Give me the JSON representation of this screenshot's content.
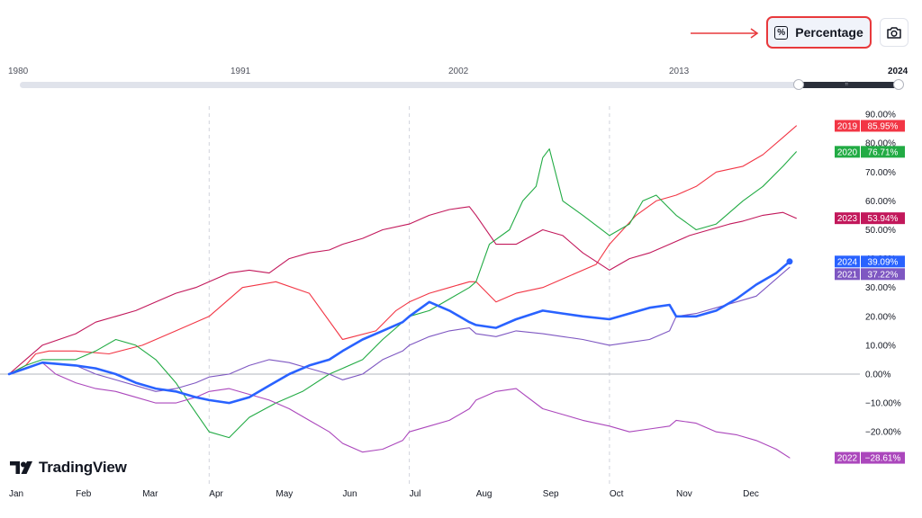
{
  "toolbar": {
    "percentage_label": "Percentage",
    "percentage_icon": "%",
    "camera_icon": "camera-icon",
    "highlight_color": "#e8393c"
  },
  "range": {
    "years": [
      "1980",
      "1991",
      "2002",
      "2013",
      "2024"
    ]
  },
  "logo": {
    "text": "TradingView"
  },
  "chart_data": {
    "type": "line",
    "title": "",
    "xlabel": "",
    "ylabel": "",
    "x_ticks": [
      "Jan",
      "Feb",
      "Mar",
      "Apr",
      "May",
      "Jun",
      "Jul",
      "Aug",
      "Sep",
      "Oct",
      "Nov",
      "Dec"
    ],
    "y_ticks": [
      "90.00%",
      "80.00%",
      "70.00%",
      "60.00%",
      "50.00%",
      "40.00%",
      "30.00%",
      "20.00%",
      "10.00%",
      "0.00%",
      "−10.00%",
      "−20.00%"
    ],
    "ylim": [
      -35,
      95
    ],
    "grid": "vertical dashed at month starts",
    "series": [
      {
        "name": "2019",
        "color": "#f23645",
        "label": "85.95%",
        "x": [
          0.0,
          0.25,
          0.4,
          0.6,
          1.0,
          1.5,
          2.0,
          2.5,
          3.0,
          3.5,
          4.0,
          4.5,
          5.0,
          5.5,
          5.8,
          6.0,
          6.3,
          6.6,
          6.9,
          7.0,
          7.3,
          7.6,
          8.0,
          8.4,
          8.8,
          9.0,
          9.4,
          9.7,
          10.0,
          10.3,
          10.6,
          11.0,
          11.3,
          11.6,
          11.8
        ],
        "y": [
          0,
          3,
          7,
          8,
          8,
          7,
          10,
          15,
          20,
          30,
          32,
          28,
          12,
          15,
          22,
          25,
          28,
          30,
          32,
          32,
          25,
          28,
          30,
          34,
          38,
          45,
          55,
          60,
          62,
          65,
          70,
          72,
          76,
          82,
          86
        ]
      },
      {
        "name": "2020",
        "color": "#22ab44",
        "label": "76.71%",
        "x": [
          0.0,
          0.25,
          0.5,
          1.0,
          1.3,
          1.6,
          1.9,
          2.2,
          2.5,
          2.7,
          3.0,
          3.3,
          3.6,
          4.0,
          4.4,
          4.8,
          5.0,
          5.3,
          5.6,
          6.0,
          6.3,
          6.6,
          6.9,
          7.0,
          7.2,
          7.5,
          7.7,
          7.9,
          8.0,
          8.1,
          8.3,
          8.6,
          9.0,
          9.3,
          9.5,
          9.7,
          10.0,
          10.3,
          10.6,
          11.0,
          11.3,
          11.6,
          11.8
        ],
        "y": [
          0,
          3,
          5,
          5,
          8,
          12,
          10,
          5,
          -3,
          -10,
          -20,
          -22,
          -15,
          -10,
          -6,
          0,
          2,
          5,
          12,
          20,
          22,
          26,
          30,
          32,
          45,
          50,
          60,
          65,
          75,
          78,
          60,
          55,
          48,
          52,
          60,
          62,
          55,
          50,
          52,
          60,
          65,
          72,
          77
        ]
      },
      {
        "name": "2023",
        "color": "#c2185b",
        "label": "53.94%",
        "x": [
          0.0,
          0.25,
          0.5,
          1.0,
          1.3,
          1.6,
          1.9,
          2.2,
          2.5,
          2.8,
          3.0,
          3.3,
          3.6,
          3.9,
          4.2,
          4.5,
          4.8,
          5.0,
          5.3,
          5.6,
          6.0,
          6.3,
          6.6,
          6.9,
          7.0,
          7.3,
          7.6,
          8.0,
          8.3,
          8.6,
          9.0,
          9.3,
          9.6,
          9.9,
          10.2,
          10.5,
          10.8,
          11.0,
          11.3,
          11.6,
          11.8
        ],
        "y": [
          0,
          5,
          10,
          14,
          18,
          20,
          22,
          25,
          28,
          30,
          32,
          35,
          36,
          35,
          40,
          42,
          43,
          45,
          47,
          50,
          52,
          55,
          57,
          58,
          55,
          45,
          45,
          50,
          48,
          42,
          36,
          40,
          42,
          45,
          48,
          50,
          52,
          53,
          55,
          56,
          54
        ]
      },
      {
        "name": "2024",
        "color": "#2962ff",
        "label": "39.09%",
        "bold": true,
        "x": [
          0.0,
          0.25,
          0.5,
          1.0,
          1.3,
          1.6,
          1.9,
          2.2,
          2.5,
          2.8,
          3.0,
          3.3,
          3.6,
          3.9,
          4.2,
          4.5,
          4.8,
          5.0,
          5.3,
          5.6,
          5.9,
          6.0,
          6.3,
          6.6,
          6.9,
          7.0,
          7.3,
          7.6,
          8.0,
          8.3,
          8.6,
          9.0,
          9.3,
          9.6,
          9.9,
          10.0,
          10.3,
          10.6,
          10.9,
          11.2,
          11.5,
          11.7
        ],
        "y": [
          0,
          2,
          4,
          3,
          2,
          0,
          -3,
          -5,
          -6,
          -8,
          -9,
          -10,
          -8,
          -4,
          0,
          3,
          5,
          8,
          12,
          15,
          18,
          20,
          25,
          22,
          18,
          17,
          16,
          19,
          22,
          21,
          20,
          19,
          21,
          23,
          24,
          20,
          20,
          22,
          26,
          31,
          35,
          39
        ]
      },
      {
        "name": "2021",
        "color": "#7e57c2",
        "label": "37.22%",
        "x": [
          0.0,
          0.25,
          0.5,
          1.0,
          1.3,
          1.6,
          1.9,
          2.2,
          2.5,
          2.8,
          3.0,
          3.3,
          3.6,
          3.9,
          4.2,
          4.5,
          4.8,
          5.0,
          5.3,
          5.6,
          5.9,
          6.0,
          6.3,
          6.6,
          6.9,
          7.0,
          7.3,
          7.6,
          8.0,
          8.3,
          8.6,
          9.0,
          9.3,
          9.6,
          9.9,
          10.0,
          10.3,
          10.6,
          10.9,
          11.2,
          11.5,
          11.7
        ],
        "y": [
          0,
          2,
          4,
          3,
          0,
          -2,
          -4,
          -6,
          -5,
          -3,
          -1,
          0,
          3,
          5,
          4,
          2,
          0,
          -2,
          0,
          5,
          8,
          10,
          13,
          15,
          16,
          14,
          13,
          15,
          14,
          13,
          12,
          10,
          11,
          12,
          15,
          20,
          21,
          23,
          25,
          27,
          33,
          37
        ]
      },
      {
        "name": "2022",
        "color": "#ab47bc",
        "label": "−28.61%",
        "x": [
          0.0,
          0.25,
          0.5,
          0.7,
          1.0,
          1.3,
          1.6,
          1.9,
          2.2,
          2.5,
          2.8,
          3.0,
          3.3,
          3.6,
          3.9,
          4.2,
          4.5,
          4.8,
          5.0,
          5.3,
          5.6,
          5.9,
          6.0,
          6.3,
          6.6,
          6.9,
          7.0,
          7.3,
          7.6,
          8.0,
          8.3,
          8.6,
          9.0,
          9.3,
          9.6,
          9.9,
          10.0,
          10.3,
          10.6,
          10.9,
          11.2,
          11.5,
          11.7
        ],
        "y": [
          0,
          2,
          4,
          0,
          -3,
          -5,
          -6,
          -8,
          -10,
          -10,
          -8,
          -6,
          -5,
          -7,
          -9,
          -12,
          -16,
          -20,
          -24,
          -27,
          -26,
          -23,
          -20,
          -18,
          -16,
          -12,
          -9,
          -6,
          -5,
          -12,
          -14,
          -16,
          -18,
          -20,
          -19,
          -18,
          -16,
          -17,
          -20,
          -21,
          -23,
          -26,
          -29
        ]
      }
    ]
  }
}
